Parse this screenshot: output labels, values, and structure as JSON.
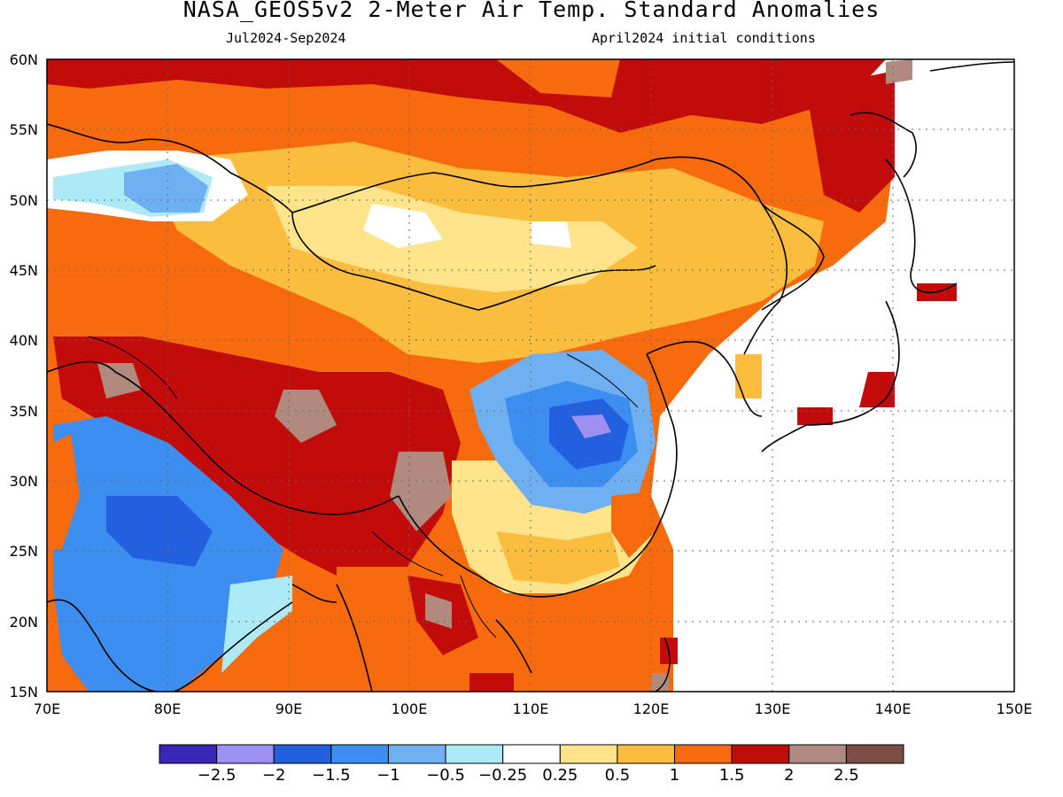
{
  "header": {
    "title": "NASA_GEOS5v2 2-Meter Air Temp. Standard Anomalies",
    "period": "Jul2024-Sep2024",
    "init": "April2024 initial conditions"
  },
  "map": {
    "lon_range": [
      70,
      150
    ],
    "lat_range": [
      15,
      60
    ],
    "lat_labels": [
      "60N",
      "55N",
      "50N",
      "45N",
      "40N",
      "35N",
      "30N",
      "25N",
      "20N",
      "15N"
    ],
    "lon_labels": [
      "70E",
      "80E",
      "90E",
      "100E",
      "110E",
      "120E",
      "130E",
      "140E",
      "150E"
    ]
  },
  "colorbar": {
    "colors": [
      "#3a25b8",
      "#9e8ff3",
      "#2260e0",
      "#3c8ef0",
      "#6eb0f2",
      "#aee9f6",
      "#ffffff",
      "#fde48a",
      "#fbbd3d",
      "#f76a0d",
      "#c20c0c",
      "#b08a7f",
      "#7a4e44"
    ],
    "labels": [
      "-2.5",
      "-2",
      "-1.5",
      "-1",
      "-0.5",
      "-0.25",
      "0.25",
      "0.5",
      "1",
      "1.5",
      "2",
      "2.5"
    ]
  }
}
